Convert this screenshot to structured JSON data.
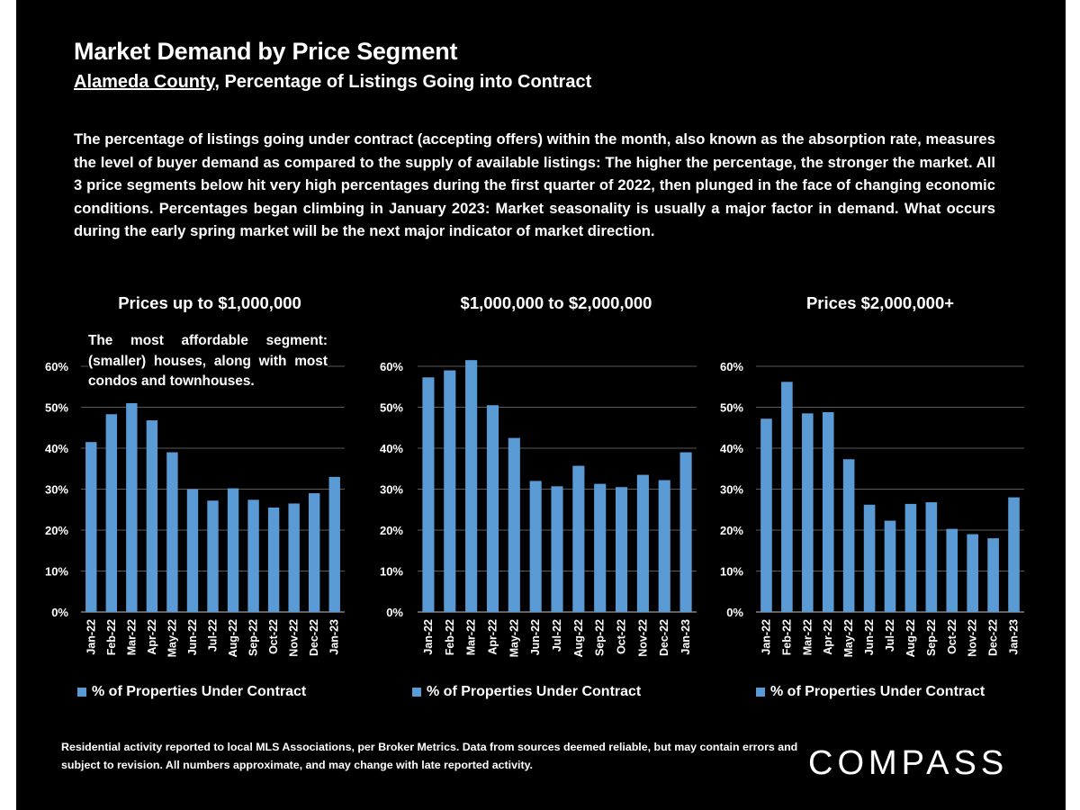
{
  "header": {
    "title": "Market Demand by Price Segment",
    "subtitle_county": "Alameda County",
    "subtitle_rest": ", Percentage of Listings Going into Contract"
  },
  "description": "The percentage of listings going under contract (accepting offers) within the month, also known as the absorption rate, measures the level of buyer demand as compared to the supply of available listings:  The higher the percentage, the stronger the market. All 3 price segments below hit very high percentages during the first quarter of 2022, then plunged in the face of changing economic conditions. Percentages began climbing in January 2023: Market seasonality is usually a major factor in demand. What occurs during the early spring market will be the next major indicator of market direction.",
  "colors": {
    "bar": "#5b9bd5",
    "background": "#000000",
    "text": "#ffffff",
    "grid": "#595959"
  },
  "chart_data": [
    {
      "type": "bar",
      "title": "Prices up to $1,000,000",
      "note": "The most affordable segment: (smaller) houses, along with most condos and townhouses.",
      "categories": [
        "Jan-22",
        "Feb-22",
        "Mar-22",
        "Apr-22",
        "May-22",
        "Jun-22",
        "Jul-22",
        "Aug-22",
        "Sep-22",
        "Oct-22",
        "Nov-22",
        "Dec-22",
        "Jan-23"
      ],
      "series": [
        {
          "name": "% of Properties Under Contract",
          "values": [
            41.5,
            48.3,
            51.0,
            46.8,
            39.0,
            30.0,
            27.2,
            30.2,
            27.4,
            25.5,
            26.5,
            29.0,
            33.0
          ]
        }
      ],
      "ylim": [
        0,
        60
      ],
      "yticks": [
        "0%",
        "10%",
        "20%",
        "30%",
        "40%",
        "50%",
        "60%"
      ],
      "grid": true,
      "legend": "bottom"
    },
    {
      "type": "bar",
      "title": "$1,000,000 to $2,000,000",
      "categories": [
        "Jan-22",
        "Feb-22",
        "Mar-22",
        "Apr-22",
        "May-22",
        "Jun-22",
        "Jul-22",
        "Aug-22",
        "Sep-22",
        "Oct-22",
        "Nov-22",
        "Dec-22",
        "Jan-23"
      ],
      "series": [
        {
          "name": "% of Properties Under Contract",
          "values": [
            57.3,
            59.0,
            61.5,
            50.5,
            42.5,
            32.0,
            30.7,
            35.7,
            31.3,
            30.5,
            33.5,
            32.2,
            39.0
          ]
        }
      ],
      "ylim": [
        0,
        60
      ],
      "yticks": [
        "0%",
        "10%",
        "20%",
        "30%",
        "40%",
        "50%",
        "60%"
      ],
      "grid": true,
      "legend": "bottom"
    },
    {
      "type": "bar",
      "title": "Prices $2,000,000+",
      "categories": [
        "Jan-22",
        "Feb-22",
        "Mar-22",
        "Apr-22",
        "May-22",
        "Jun-22",
        "Jul-22",
        "Aug-22",
        "Sep-22",
        "Oct-22",
        "Nov-22",
        "Dec-22",
        "Jan-23"
      ],
      "series": [
        {
          "name": "% of Properties Under Contract",
          "values": [
            47.2,
            56.2,
            48.5,
            48.8,
            37.3,
            26.2,
            22.3,
            26.4,
            26.8,
            20.3,
            19.0,
            18.0,
            28.0
          ]
        }
      ],
      "ylim": [
        0,
        60
      ],
      "yticks": [
        "0%",
        "10%",
        "20%",
        "30%",
        "40%",
        "50%",
        "60%"
      ],
      "grid": true,
      "legend": "bottom"
    }
  ],
  "footer": "Residential activity reported to local MLS Associations, per Broker Metrics. Data from sources deemed reliable, but may contain errors and subject to revision. All numbers approximate, and may change with late reported activity.",
  "logo": "COMPASS"
}
